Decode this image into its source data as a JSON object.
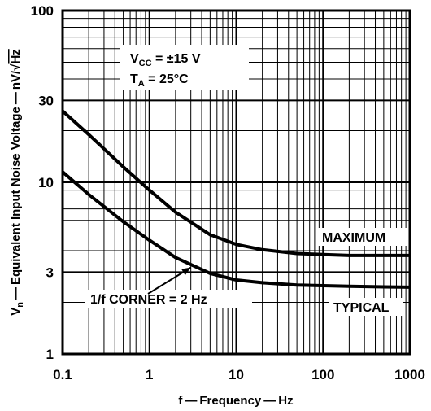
{
  "chart_data": {
    "type": "line",
    "xscale": "log",
    "yscale": "log",
    "xlim": [
      0.1,
      1000
    ],
    "ylim": [
      1,
      100
    ],
    "grid": true,
    "xlabel": "f — Frequency — Hz",
    "ylabel": "Vn — Equivalent Input Noise Voltage — nV/√Hz",
    "ylabel_parts": {
      "v": "V",
      "sub": "n",
      "text": " — Equivalent Input Noise Voltage — nV/",
      "sqrt": "√",
      "hz": "Hz"
    },
    "x_ticks": [
      {
        "value": 0.1,
        "label": "0.1"
      },
      {
        "value": 1,
        "label": "1"
      },
      {
        "value": 10,
        "label": "10"
      },
      {
        "value": 100,
        "label": "100"
      },
      {
        "value": 1000,
        "label": "1000"
      }
    ],
    "y_ticks": [
      {
        "value": 1,
        "label": "1"
      },
      {
        "value": 3,
        "label": "3"
      },
      {
        "value": 10,
        "label": "10"
      },
      {
        "value": 30,
        "label": "30"
      },
      {
        "value": 100,
        "label": "100"
      }
    ],
    "conditions": {
      "vcc": {
        "v": "V",
        "sub": "CC",
        "rest": " = ±15 V"
      },
      "ta": {
        "v": "T",
        "sub": "A",
        "rest": " = 25°C"
      }
    },
    "series": [
      {
        "name": "MAXIMUM",
        "x": [
          0.1,
          0.2,
          0.5,
          1,
          2,
          5,
          10,
          20,
          50,
          100,
          200,
          500,
          1000
        ],
        "y": [
          26,
          19,
          12.3,
          9,
          6.7,
          4.95,
          4.35,
          4.05,
          3.85,
          3.8,
          3.75,
          3.75,
          3.75
        ]
      },
      {
        "name": "TYPICAL",
        "x": [
          0.1,
          0.2,
          0.5,
          1,
          2,
          5,
          10,
          20,
          50,
          100,
          200,
          500,
          1000
        ],
        "y": [
          11.5,
          8.5,
          5.9,
          4.6,
          3.65,
          2.95,
          2.7,
          2.6,
          2.52,
          2.5,
          2.48,
          2.46,
          2.45
        ]
      }
    ],
    "annotations": [
      {
        "text": "1/f CORNER = 2 Hz",
        "points_to": {
          "x": 3,
          "y": 3.3
        }
      }
    ]
  }
}
